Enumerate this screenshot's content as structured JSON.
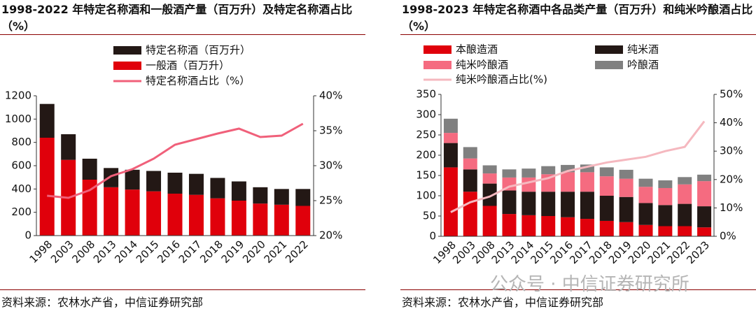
{
  "chart_data": [
    {
      "type": "bar",
      "title": "1998-2022 年特定名称酒和一般酒产量（百万升）及特定名称酒占比（%）",
      "categories": [
        "1998",
        "2003",
        "2008",
        "2013",
        "2014",
        "2015",
        "2016",
        "2017",
        "2018",
        "2019",
        "2020",
        "2021",
        "2022"
      ],
      "series": [
        {
          "name": "一般酒（百万升）",
          "color": "#e0000b",
          "values": [
            840,
            650,
            480,
            415,
            395,
            380,
            360,
            350,
            320,
            300,
            275,
            265,
            255
          ]
        },
        {
          "name": "特定名称酒（百万升）",
          "color": "#231815",
          "values": [
            290,
            220,
            180,
            165,
            170,
            175,
            180,
            180,
            175,
            165,
            140,
            135,
            145
          ]
        },
        {
          "name": "特定名称酒占比（%）",
          "color": "#f0607a",
          "axis": "y2",
          "type": "line",
          "values": [
            25.7,
            25.4,
            26.5,
            28.5,
            29.5,
            31,
            33,
            33.8,
            34.6,
            35.3,
            34.1,
            34.3,
            36
          ]
        }
      ],
      "ylim": [
        0,
        1200
      ],
      "yticks": [
        0,
        200,
        400,
        600,
        800,
        1000,
        1200
      ],
      "y2lim": [
        20,
        40
      ],
      "y2ticks": [
        {
          "value": 20,
          "label": "20%"
        },
        {
          "value": 25,
          "label": "25%"
        },
        {
          "value": 30,
          "label": "30%"
        },
        {
          "value": 35,
          "label": "35%"
        },
        {
          "value": 40,
          "label": "40%"
        }
      ],
      "stacked": true,
      "source": "资料来源：农林水产省，中信证券研究部"
    },
    {
      "type": "bar",
      "title": "1998-2023 年特定名称酒中各品类产量（百万升）和纯米吟酿酒占比（%）",
      "categories": [
        "1998",
        "2003",
        "2008",
        "2013",
        "2014",
        "2015",
        "2016",
        "2017",
        "2018",
        "2019",
        "2020",
        "2021",
        "2022",
        "2023"
      ],
      "series": [
        {
          "name": "本酿造酒",
          "color": "#e0000b",
          "values": [
            170,
            110,
            75,
            55,
            52,
            50,
            47,
            43,
            38,
            35,
            28,
            25,
            25,
            22
          ]
        },
        {
          "name": "纯米酒",
          "color": "#231815",
          "values": [
            60,
            55,
            55,
            58,
            58,
            60,
            63,
            67,
            62,
            62,
            54,
            52,
            55,
            52
          ]
        },
        {
          "name": "纯米吟酿酒",
          "color": "#f56b80",
          "values": [
            25,
            27,
            25,
            32,
            35,
            43,
            48,
            48,
            48,
            45,
            40,
            42,
            48,
            62
          ]
        },
        {
          "name": "吟酿酒",
          "color": "#808080",
          "values": [
            35,
            28,
            20,
            20,
            22,
            20,
            18,
            19,
            22,
            22,
            20,
            19,
            18,
            16
          ]
        },
        {
          "name": "纯米吟酿酒占比(%)",
          "color": "#f5b8bf",
          "axis": "y2",
          "type": "line",
          "values": [
            8.5,
            12,
            14,
            17.5,
            19,
            20.5,
            23,
            24.5,
            26,
            27,
            28,
            30,
            31.5,
            40.5
          ]
        }
      ],
      "ylim": [
        0,
        350
      ],
      "yticks": [
        0,
        50,
        100,
        150,
        200,
        250,
        300,
        350
      ],
      "y2lim": [
        0,
        50
      ],
      "y2ticks": [
        {
          "value": 0,
          "label": "0%"
        },
        {
          "value": 10,
          "label": "10%"
        },
        {
          "value": 20,
          "label": "20%"
        },
        {
          "value": 30,
          "label": "30%"
        },
        {
          "value": 40,
          "label": "40%"
        },
        {
          "value": 50,
          "label": "50%"
        }
      ],
      "stacked": true,
      "source": "资料来源：农林水产省，中信证券研究部"
    }
  ],
  "watermark": "公众号 · 中信证券研究所"
}
